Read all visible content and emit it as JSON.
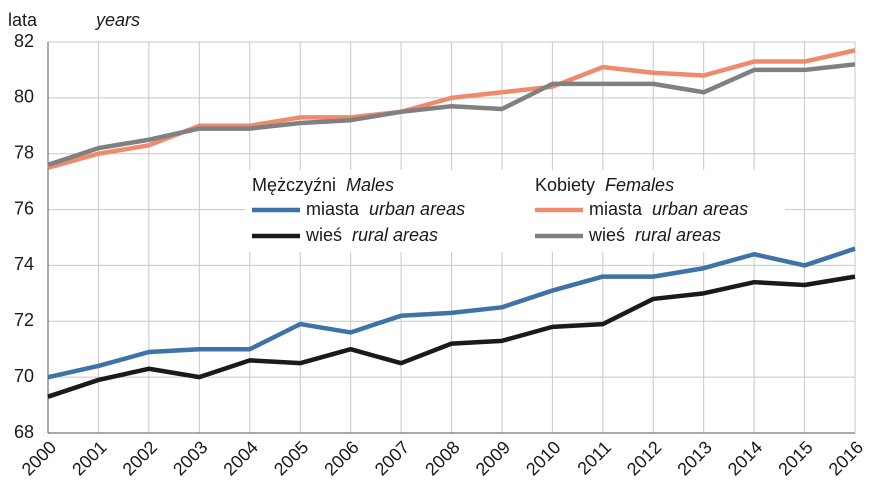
{
  "chart_data": {
    "type": "line",
    "y_label": "lata",
    "y_label_translation": "years",
    "categories": [
      "2000",
      "2001",
      "2002",
      "2003",
      "2004",
      "2005",
      "2006",
      "2007",
      "2008",
      "2009",
      "2010",
      "2011",
      "2012",
      "2013",
      "2014",
      "2015",
      "2016"
    ],
    "ylim": [
      68,
      82
    ],
    "yticks": [
      68,
      70,
      72,
      74,
      76,
      78,
      80,
      82
    ],
    "grid": true,
    "legend_groups": [
      {
        "title": "Mężczyźni",
        "title_translation": "Males"
      },
      {
        "title": "Kobiety",
        "title_translation": "Females"
      }
    ],
    "series": [
      {
        "name": "miasta",
        "name_translation": "urban areas",
        "color": "#3f72a8",
        "values": [
          70.0,
          70.4,
          70.9,
          71.0,
          71.0,
          71.9,
          71.6,
          72.2,
          72.3,
          72.5,
          73.1,
          73.6,
          73.6,
          73.9,
          74.4,
          74.0,
          74.6
        ]
      },
      {
        "name": "wieś",
        "name_translation": "rural areas",
        "color": "#1a1a1a",
        "values": [
          69.3,
          69.9,
          70.3,
          70.0,
          70.6,
          70.5,
          71.0,
          70.5,
          71.2,
          71.3,
          71.8,
          71.9,
          72.8,
          73.0,
          73.4,
          73.3,
          73.6
        ]
      },
      {
        "name": "miasta",
        "name_translation": "urban areas",
        "color": "#f08a6e",
        "values": [
          77.5,
          78.0,
          78.3,
          79.0,
          79.0,
          79.3,
          79.3,
          79.5,
          80.0,
          80.2,
          80.4,
          81.1,
          80.9,
          80.8,
          81.3,
          81.3,
          81.7
        ]
      },
      {
        "name": "wieś",
        "name_translation": "rural areas",
        "color": "#808080",
        "values": [
          77.6,
          78.2,
          78.5,
          78.9,
          78.9,
          79.1,
          79.2,
          79.5,
          79.7,
          79.6,
          80.5,
          80.5,
          80.5,
          80.2,
          81.0,
          81.0,
          81.2
        ]
      }
    ]
  }
}
